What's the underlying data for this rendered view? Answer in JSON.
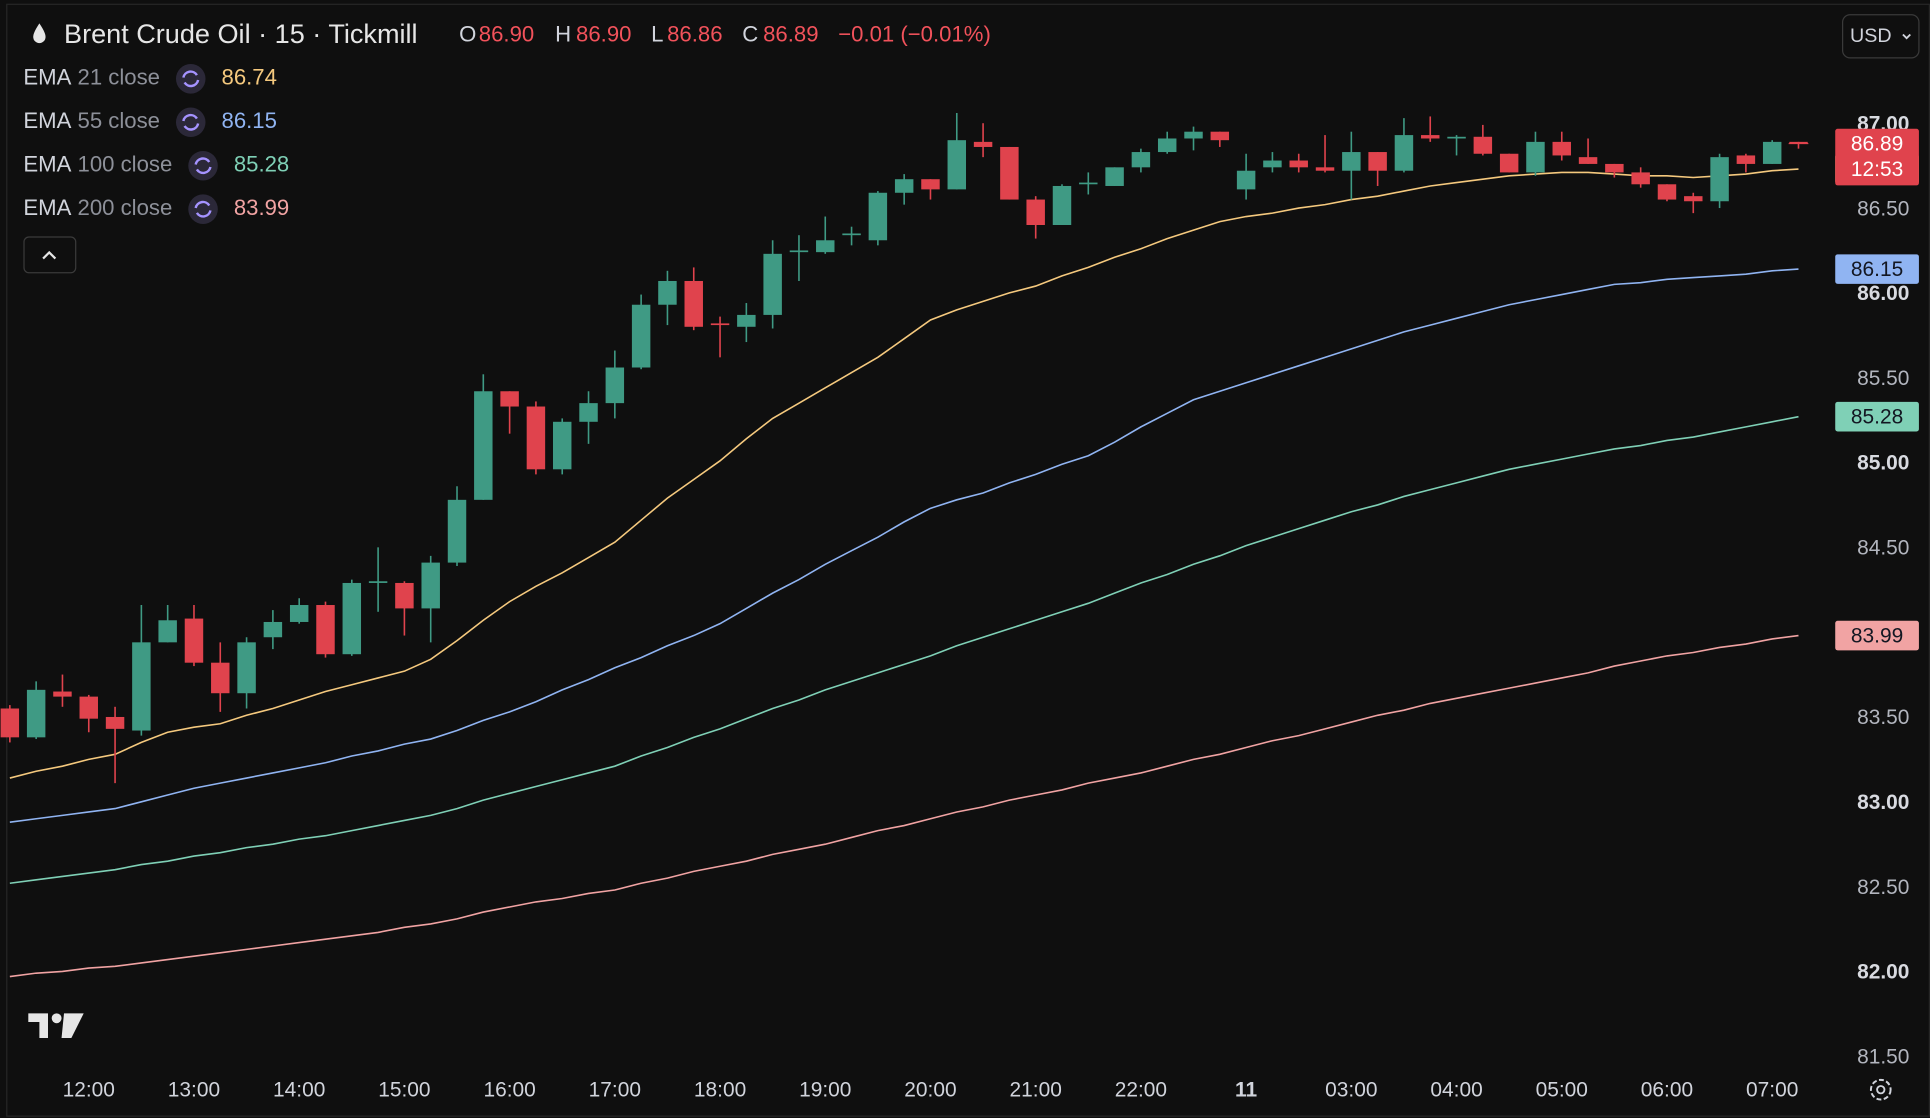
{
  "header": {
    "symbol": "Brent Crude Oil · 15 · Tickmill",
    "ohlc": [
      {
        "key": "O",
        "value": "86.90"
      },
      {
        "key": "H",
        "value": "86.90"
      },
      {
        "key": "L",
        "value": "86.86"
      },
      {
        "key": "C",
        "value": "86.89"
      }
    ],
    "change": "−0.01 (−0.01%)",
    "currency": "USD"
  },
  "chart_data": {
    "type": "candlestick",
    "categories": [
      null,
      null,
      null,
      "12:00",
      null,
      null,
      null,
      "13:00",
      null,
      null,
      null,
      "14:00",
      null,
      null,
      null,
      "15:00",
      null,
      null,
      null,
      "16:00",
      null,
      null,
      null,
      "17:00",
      null,
      null,
      null,
      "18:00",
      null,
      null,
      null,
      "19:00",
      null,
      null,
      null,
      "20:00",
      null,
      null,
      null,
      "21:00",
      null,
      null,
      null,
      "22:00",
      null,
      null,
      null,
      "11",
      null,
      null,
      null,
      "03:00",
      null,
      null,
      null,
      "04:00",
      null,
      null,
      null,
      "05:00",
      null,
      null,
      null,
      "06:00",
      null,
      null,
      null,
      "07:00",
      null
    ],
    "candles": {
      "up_color": "#3f9a84",
      "down_color": "#e0434d",
      "open": [
        83.56,
        83.39,
        83.66,
        83.63,
        83.51,
        83.43,
        83.95,
        84.09,
        83.83,
        83.65,
        83.98,
        84.07,
        84.17,
        83.88,
        84.3,
        84.3,
        84.15,
        84.42,
        84.79,
        85.43,
        85.34,
        84.97,
        85.25,
        85.36,
        85.57,
        85.94,
        86.08,
        85.83,
        85.81,
        85.88,
        86.25,
        86.25,
        86.35,
        86.32,
        86.6,
        86.68,
        86.62,
        86.9,
        86.87,
        86.56,
        86.41,
        86.65,
        86.64,
        86.75,
        86.84,
        86.92,
        86.96,
        86.62,
        86.75,
        86.79,
        86.75,
        86.73,
        86.84,
        86.73,
        86.94,
        86.92,
        86.93,
        86.83,
        86.72,
        86.9,
        86.81,
        86.77,
        86.72,
        86.65,
        86.58,
        86.55,
        86.82,
        86.77,
        86.9
      ],
      "high": [
        83.58,
        83.72,
        83.76,
        83.64,
        83.57,
        84.17,
        84.17,
        84.17,
        83.95,
        83.98,
        84.14,
        84.21,
        84.19,
        84.32,
        84.51,
        84.31,
        84.46,
        84.87,
        85.53,
        85.43,
        85.37,
        85.27,
        85.43,
        85.67,
        86.0,
        86.14,
        86.16,
        85.87,
        85.95,
        86.32,
        86.35,
        86.46,
        86.4,
        86.61,
        86.71,
        86.68,
        87.07,
        87.01,
        86.87,
        86.58,
        86.65,
        86.72,
        86.75,
        86.86,
        86.96,
        86.99,
        86.96,
        86.83,
        86.84,
        86.83,
        86.94,
        86.96,
        86.84,
        87.04,
        87.05,
        86.94,
        87.0,
        86.83,
        86.96,
        86.96,
        86.92,
        86.77,
        86.75,
        86.65,
        86.6,
        86.83,
        86.83,
        86.91,
        86.9
      ],
      "low": [
        83.36,
        83.38,
        83.57,
        83.42,
        83.12,
        83.4,
        83.95,
        83.81,
        83.54,
        83.56,
        83.91,
        84.06,
        83.86,
        83.87,
        84.13,
        83.99,
        83.95,
        84.4,
        84.79,
        85.18,
        84.94,
        84.94,
        85.12,
        85.27,
        85.56,
        85.82,
        85.79,
        85.63,
        85.72,
        85.8,
        86.08,
        86.24,
        86.29,
        86.29,
        86.53,
        86.56,
        86.62,
        86.81,
        86.56,
        86.33,
        86.41,
        86.59,
        86.64,
        86.72,
        86.83,
        86.85,
        86.87,
        86.56,
        86.72,
        86.72,
        86.72,
        86.56,
        86.64,
        86.72,
        86.9,
        86.82,
        86.82,
        86.72,
        86.7,
        86.79,
        86.77,
        86.69,
        86.63,
        86.55,
        86.48,
        86.51,
        86.72,
        86.77,
        86.86
      ],
      "close": [
        83.39,
        83.67,
        83.63,
        83.5,
        83.44,
        83.95,
        84.08,
        83.83,
        83.65,
        83.95,
        84.07,
        84.17,
        83.88,
        84.3,
        84.31,
        84.15,
        84.42,
        84.79,
        85.43,
        85.34,
        84.97,
        85.25,
        85.36,
        85.57,
        85.94,
        86.08,
        85.81,
        85.82,
        85.88,
        86.24,
        86.26,
        86.32,
        86.36,
        86.6,
        86.68,
        86.62,
        86.91,
        86.87,
        86.56,
        86.41,
        86.64,
        86.66,
        86.75,
        86.84,
        86.92,
        86.96,
        86.91,
        86.73,
        86.79,
        86.75,
        86.73,
        86.84,
        86.73,
        86.94,
        86.92,
        86.93,
        86.83,
        86.72,
        86.9,
        86.82,
        86.77,
        86.72,
        86.65,
        86.56,
        86.55,
        86.81,
        86.77,
        86.9,
        86.89
      ]
    },
    "countdown": "12:53",
    "series": [
      {
        "name": "EMA",
        "inputs": "21 close",
        "color": "#f5c97e",
        "values": [
          83.15,
          83.19,
          83.22,
          83.26,
          83.29,
          83.36,
          83.42,
          83.45,
          83.47,
          83.52,
          83.56,
          83.61,
          83.66,
          83.7,
          83.74,
          83.78,
          83.85,
          83.96,
          84.08,
          84.19,
          84.28,
          84.36,
          84.45,
          84.54,
          84.67,
          84.8,
          84.91,
          85.02,
          85.15,
          85.27,
          85.36,
          85.45,
          85.54,
          85.63,
          85.74,
          85.85,
          85.91,
          85.96,
          86.01,
          86.05,
          86.11,
          86.16,
          86.22,
          86.27,
          86.33,
          86.38,
          86.43,
          86.46,
          86.48,
          86.51,
          86.53,
          86.56,
          86.58,
          86.61,
          86.64,
          86.66,
          86.68,
          86.7,
          86.71,
          86.72,
          86.72,
          86.71,
          86.7,
          86.7,
          86.69,
          86.7,
          86.71,
          86.73,
          86.74
        ]
      },
      {
        "name": "EMA",
        "inputs": "55 close",
        "color": "#90b4f2",
        "values": [
          82.89,
          82.91,
          82.93,
          82.95,
          82.97,
          83.01,
          83.05,
          83.09,
          83.12,
          83.15,
          83.18,
          83.21,
          83.24,
          83.28,
          83.31,
          83.35,
          83.38,
          83.43,
          83.49,
          83.54,
          83.6,
          83.67,
          83.73,
          83.8,
          83.86,
          83.93,
          83.99,
          84.06,
          84.15,
          84.24,
          84.32,
          84.41,
          84.49,
          84.57,
          84.66,
          84.74,
          84.79,
          84.83,
          84.89,
          84.94,
          85.0,
          85.05,
          85.13,
          85.22,
          85.3,
          85.38,
          85.43,
          85.48,
          85.53,
          85.58,
          85.63,
          85.68,
          85.73,
          85.78,
          85.82,
          85.86,
          85.9,
          85.94,
          85.97,
          86.0,
          86.03,
          86.06,
          86.07,
          86.09,
          86.1,
          86.11,
          86.12,
          86.14,
          86.15
        ]
      },
      {
        "name": "EMA",
        "inputs": "100 close",
        "color": "#7fd0b6",
        "values": [
          82.53,
          82.55,
          82.57,
          82.59,
          82.61,
          82.64,
          82.66,
          82.69,
          82.71,
          82.74,
          82.76,
          82.79,
          82.81,
          82.84,
          82.87,
          82.9,
          82.93,
          82.97,
          83.02,
          83.06,
          83.1,
          83.14,
          83.18,
          83.22,
          83.28,
          83.33,
          83.39,
          83.44,
          83.5,
          83.56,
          83.61,
          83.67,
          83.72,
          83.77,
          83.82,
          83.87,
          83.93,
          83.98,
          84.03,
          84.08,
          84.13,
          84.18,
          84.24,
          84.3,
          84.35,
          84.41,
          84.46,
          84.52,
          84.57,
          84.62,
          84.67,
          84.72,
          84.76,
          84.81,
          84.85,
          84.89,
          84.93,
          84.97,
          85.0,
          85.03,
          85.06,
          85.09,
          85.11,
          85.14,
          85.16,
          85.19,
          85.22,
          85.25,
          85.28
        ]
      },
      {
        "name": "EMA",
        "inputs": "200 close",
        "color": "#f1a3a3",
        "values": [
          81.98,
          82.0,
          82.01,
          82.03,
          82.04,
          82.06,
          82.08,
          82.1,
          82.12,
          82.14,
          82.16,
          82.18,
          82.2,
          82.22,
          82.24,
          82.27,
          82.29,
          82.32,
          82.36,
          82.39,
          82.42,
          82.44,
          82.47,
          82.49,
          82.53,
          82.56,
          82.6,
          82.63,
          82.66,
          82.7,
          82.73,
          82.76,
          82.8,
          82.84,
          82.87,
          82.91,
          82.95,
          82.98,
          83.02,
          83.05,
          83.08,
          83.12,
          83.15,
          83.18,
          83.22,
          83.26,
          83.29,
          83.33,
          83.37,
          83.4,
          83.44,
          83.48,
          83.52,
          83.55,
          83.59,
          83.62,
          83.65,
          83.68,
          83.71,
          83.74,
          83.77,
          83.81,
          83.84,
          83.87,
          83.89,
          83.92,
          83.94,
          83.97,
          83.99
        ]
      }
    ],
    "ylim": [
      81.48,
      87.7
    ],
    "yticks": [
      {
        "value": 81.5,
        "label": "81.50"
      },
      {
        "value": 82,
        "label": "82.00"
      },
      {
        "value": 82.5,
        "label": "82.50"
      },
      {
        "value": 83,
        "label": "83.00"
      },
      {
        "value": 83.5,
        "label": "83.50"
      },
      {
        "value": 84,
        "label": "84.00"
      },
      {
        "value": 84.5,
        "label": "84.50"
      },
      {
        "value": 85,
        "label": "85.00"
      },
      {
        "value": 85.5,
        "label": "85.50"
      },
      {
        "value": 86,
        "label": "86.00"
      },
      {
        "value": 86.5,
        "label": "86.50"
      },
      {
        "value": 87,
        "label": "87.00"
      }
    ],
    "grid": false
  }
}
